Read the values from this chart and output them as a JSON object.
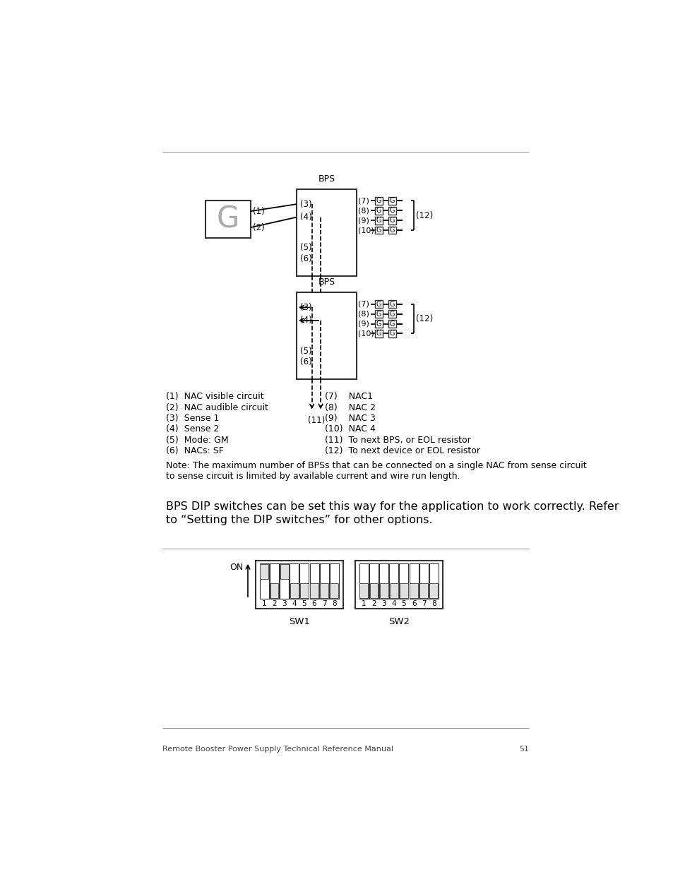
{
  "bg_color": "#ffffff",
  "text_color": "#000000",
  "page_number": "51",
  "footer_text": "Remote Booster Power Supply Technical Reference Manual",
  "legend_items_left": [
    "(1)  NAC visible circuit",
    "(2)  NAC audible circuit",
    "(3)  Sense 1",
    "(4)  Sense 2",
    "(5)  Mode: GM",
    "(6)  NACs: SF"
  ],
  "legend_items_right": [
    "(7)    NAC1",
    "(8)    NAC 2",
    "(9)    NAC 3",
    "(10)  NAC 4",
    "(11)  To next BPS, or EOL resistor",
    "(12)  To next device or EOL resistor"
  ],
  "note_text": "Note: The maximum number of BPSs that can be connected on a single NAC from sense circuit\nto sense circuit is limited by available current and wire run length.",
  "dip_text_line1": "BPS DIP switches can be set this way for the application to work correctly. Refer",
  "dip_text_line2": "to “Setting the DIP switches” for other options.",
  "sw1_label": "SW1",
  "sw2_label": "SW2",
  "sw1_on_switches": [
    1,
    3
  ],
  "sw2_on_switches": []
}
